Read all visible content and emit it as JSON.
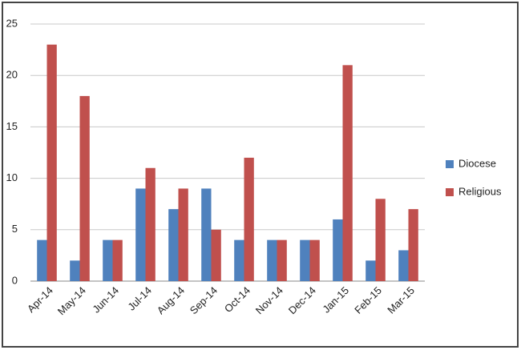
{
  "chart_data": {
    "type": "bar",
    "categories": [
      "Apr-14",
      "May-14",
      "Jun-14",
      "Jul-14",
      "Aug-14",
      "Sep-14",
      "Oct-14",
      "Nov-14",
      "Dec-14",
      "Jan-15",
      "Feb-15",
      "Mar-15"
    ],
    "series": [
      {
        "name": "Diocese",
        "color": "#4f81bd",
        "values": [
          4,
          2,
          4,
          9,
          7,
          9,
          4,
          4,
          4,
          6,
          2,
          3
        ]
      },
      {
        "name": "Religious",
        "color": "#c0504d",
        "values": [
          23,
          18,
          4,
          11,
          9,
          5,
          12,
          4,
          4,
          21,
          8,
          7
        ]
      }
    ],
    "ylim": [
      0,
      25
    ],
    "yticks": [
      0,
      5,
      10,
      15,
      20,
      25
    ],
    "grid": true,
    "legend": "right"
  }
}
